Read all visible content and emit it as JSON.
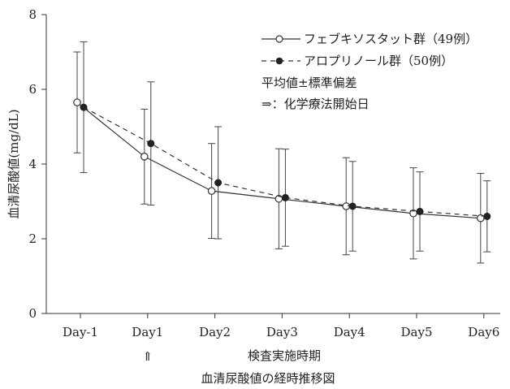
{
  "chart_data": {
    "type": "line",
    "title": "",
    "xlabel": "検査実施時期",
    "ylabel": "血清尿酸値(mg/dL)",
    "caption": "血清尿酸値の経時推移図",
    "categories": [
      "Day-1",
      "Day1",
      "Day2",
      "Day3",
      "Day4",
      "Day5",
      "Day6"
    ],
    "ylim": [
      0,
      8
    ],
    "yticks": [
      "0",
      "2",
      "4",
      "6",
      "8"
    ],
    "grid": false,
    "legend_position": "top-right",
    "start_marker_text": "⇑",
    "start_marker_category": "Day1",
    "notes": [
      "平均値±標準偏差",
      "⇒：化学療法開始日"
    ],
    "series": [
      {
        "name": "フェブキソスタット群（49例）",
        "marker": "open-circle",
        "line_style": "solid",
        "values": [
          5.65,
          4.2,
          3.28,
          3.07,
          2.87,
          2.68,
          2.55
        ],
        "sd": [
          1.35,
          1.27,
          1.27,
          1.34,
          1.3,
          1.22,
          1.2
        ]
      },
      {
        "name": "アロプリノール群（50例）",
        "marker": "filled-circle",
        "line_style": "dashed",
        "values": [
          5.52,
          4.55,
          3.5,
          3.1,
          2.87,
          2.73,
          2.6
        ],
        "sd": [
          1.75,
          1.65,
          1.5,
          1.3,
          1.2,
          1.06,
          0.95
        ]
      }
    ]
  }
}
